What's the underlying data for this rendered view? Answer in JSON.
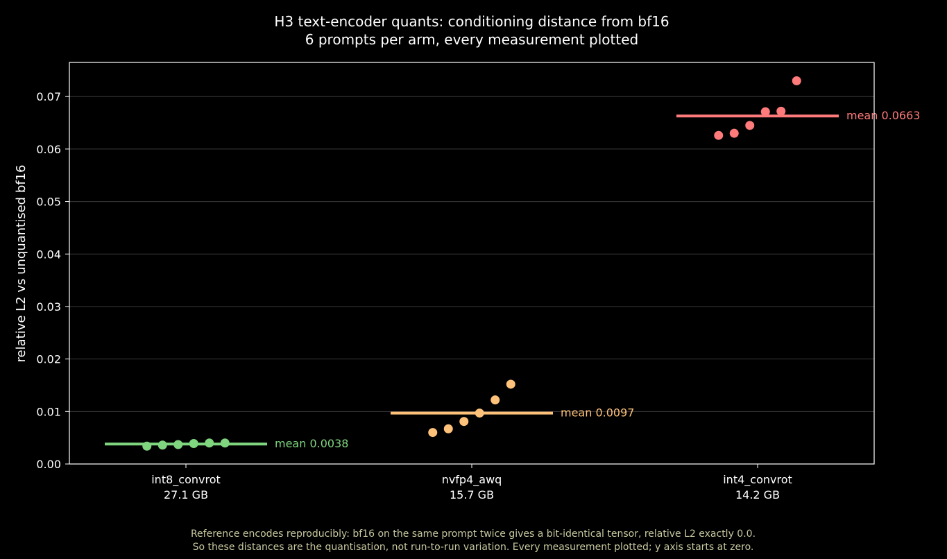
{
  "chart_data": {
    "type": "scatter",
    "title": "H3 text-encoder quants: conditioning distance from bf16",
    "subtitle": "6 prompts per arm, every measurement plotted",
    "ylabel": "relative L2 vs unquantised bf16",
    "ylim": [
      0,
      0.0765
    ],
    "yticks": [
      0.0,
      0.01,
      0.02,
      0.03,
      0.04,
      0.05,
      0.06,
      0.07
    ],
    "ytick_labels": [
      "0.00",
      "0.01",
      "0.02",
      "0.03",
      "0.04",
      "0.05",
      "0.06",
      "0.07"
    ],
    "grid": true,
    "categories": [
      {
        "name": "int8_convrot",
        "size": "27.1 GB",
        "color": "#7fd67f",
        "points": [
          0.0034,
          0.0036,
          0.0037,
          0.0039,
          0.004,
          0.004
        ],
        "mean": 0.0038,
        "mean_label": "mean 0.0038"
      },
      {
        "name": "nvfp4_awq",
        "size": "15.7 GB",
        "color": "#ffc27a",
        "points": [
          0.006,
          0.0067,
          0.0081,
          0.0097,
          0.0122,
          0.0152
        ],
        "mean": 0.0097,
        "mean_label": "mean 0.0097"
      },
      {
        "name": "int4_convrot",
        "size": "14.2 GB",
        "color": "#ff7a7a",
        "points": [
          0.0626,
          0.063,
          0.0645,
          0.0671,
          0.0672,
          0.073
        ],
        "mean": 0.0663,
        "mean_label": "mean 0.0663"
      }
    ],
    "footnote": [
      "Reference encodes reproducibly: bf16 on the same prompt twice gives a bit-identical tensor, relative L2 exactly 0.0.",
      "So these distances are the quantisation, not run-to-run variation. Every measurement plotted; y axis starts at zero."
    ]
  }
}
